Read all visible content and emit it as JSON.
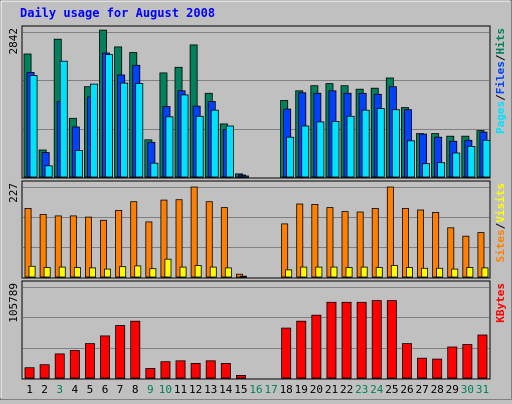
{
  "title": "Daily usage for August 2008",
  "colors": {
    "background": "#c0c0c0",
    "plot_bg": "#c0c0c0",
    "title": "#0000ff",
    "hits": "#00805c",
    "files": "#0040ff",
    "pages": "#00e0ff",
    "sites": "#ff8000",
    "visits": "#ffff00",
    "kbytes": "#ff0000",
    "weekday_label": "#000000",
    "weekend_label": "#00805c"
  },
  "chart_data": [
    {
      "type": "bar",
      "name": "hits-files-pages",
      "ymax_label": "2842",
      "ylim": [
        0,
        2842
      ],
      "legend": [
        {
          "key": "pages",
          "label": "Pages"
        },
        {
          "key": "sep1",
          "label": "/"
        },
        {
          "key": "files",
          "label": "Files"
        },
        {
          "key": "sep2",
          "label": "/"
        },
        {
          "key": "hits",
          "label": "Hits"
        }
      ],
      "categories": [
        1,
        2,
        3,
        4,
        5,
        6,
        7,
        8,
        9,
        10,
        11,
        12,
        13,
        14,
        15,
        16,
        17,
        18,
        19,
        20,
        21,
        22,
        23,
        24,
        25,
        26,
        27,
        28,
        29,
        30,
        31
      ],
      "series": [
        {
          "name": "Hits",
          "key": "hits",
          "values": [
            2410,
            530,
            2700,
            1150,
            1770,
            2880,
            2550,
            2440,
            730,
            2040,
            2150,
            2590,
            1640,
            1040,
            60,
            0,
            0,
            1500,
            1690,
            1790,
            1830,
            1790,
            1720,
            1740,
            1940,
            1360,
            850,
            850,
            800,
            800,
            910
          ]
        },
        {
          "name": "Files",
          "key": "files",
          "values": [
            2050,
            480,
            1480,
            980,
            1570,
            2430,
            2000,
            2190,
            680,
            1380,
            1690,
            1390,
            1480,
            930,
            40,
            0,
            0,
            1330,
            1650,
            1640,
            1690,
            1640,
            1640,
            1620,
            1770,
            1320,
            840,
            780,
            700,
            720,
            880
          ]
        },
        {
          "name": "Pages",
          "key": "pages",
          "values": [
            1990,
            220,
            2270,
            520,
            1820,
            2400,
            1840,
            1830,
            270,
            1180,
            1610,
            1190,
            1310,
            1000,
            20,
            0,
            0,
            780,
            1000,
            1080,
            1090,
            1190,
            1310,
            1340,
            1320,
            710,
            260,
            280,
            470,
            600,
            720
          ]
        }
      ]
    },
    {
      "type": "bar",
      "name": "sites-visits",
      "ymax_label": "227",
      "ylim": [
        0,
        227
      ],
      "legend": [
        {
          "key": "sites",
          "label": "Sites"
        },
        {
          "key": "sep1",
          "label": "/"
        },
        {
          "key": "visits",
          "label": "Visits"
        }
      ],
      "categories": [
        1,
        2,
        3,
        4,
        5,
        6,
        7,
        8,
        9,
        10,
        11,
        12,
        13,
        14,
        15,
        16,
        17,
        18,
        19,
        20,
        21,
        22,
        23,
        24,
        25,
        26,
        27,
        28,
        29,
        30,
        31
      ],
      "series": [
        {
          "name": "Sites",
          "key": "sites",
          "values": [
            173,
            158,
            154,
            154,
            151,
            143,
            168,
            190,
            139,
            194,
            195,
            227,
            190,
            175,
            7,
            0,
            0,
            134,
            184,
            183,
            175,
            165,
            164,
            173,
            227,
            173,
            169,
            163,
            124,
            103,
            112
          ]
        },
        {
          "name": "Visits",
          "key": "visits",
          "values": [
            27,
            24,
            25,
            24,
            23,
            20,
            26,
            28,
            21,
            45,
            25,
            29,
            25,
            23,
            2,
            0,
            0,
            18,
            25,
            25,
            25,
            24,
            25,
            24,
            29,
            24,
            22,
            22,
            20,
            24,
            23
          ]
        }
      ]
    },
    {
      "type": "bar",
      "name": "kbytes",
      "ymax_label": "105789",
      "ylim": [
        0,
        105789
      ],
      "legend": [
        {
          "key": "kbytes",
          "label": "KBytes"
        }
      ],
      "categories": [
        1,
        2,
        3,
        4,
        5,
        6,
        7,
        8,
        9,
        10,
        11,
        12,
        13,
        14,
        15,
        16,
        17,
        18,
        19,
        20,
        21,
        22,
        23,
        24,
        25,
        26,
        27,
        28,
        29,
        30,
        31
      ],
      "series": [
        {
          "name": "KBytes",
          "key": "kbytes",
          "values": [
            12000,
            15500,
            28000,
            32000,
            40000,
            49000,
            61000,
            66000,
            11000,
            19000,
            20000,
            17000,
            20000,
            17000,
            3000,
            0,
            0,
            58000,
            66000,
            73000,
            88000,
            88000,
            88000,
            90000,
            90000,
            40000,
            23000,
            22000,
            36000,
            39000,
            50000
          ]
        }
      ]
    }
  ],
  "x_labels": [
    {
      "day": "1",
      "weekend": false
    },
    {
      "day": "2",
      "weekend": false
    },
    {
      "day": "3",
      "weekend": true
    },
    {
      "day": "4",
      "weekend": false
    },
    {
      "day": "5",
      "weekend": false
    },
    {
      "day": "6",
      "weekend": false
    },
    {
      "day": "7",
      "weekend": false
    },
    {
      "day": "8",
      "weekend": false
    },
    {
      "day": "9",
      "weekend": true
    },
    {
      "day": "10",
      "weekend": true
    },
    {
      "day": "11",
      "weekend": false
    },
    {
      "day": "12",
      "weekend": false
    },
    {
      "day": "13",
      "weekend": false
    },
    {
      "day": "14",
      "weekend": false
    },
    {
      "day": "15",
      "weekend": false
    },
    {
      "day": "16",
      "weekend": true
    },
    {
      "day": "17",
      "weekend": true
    },
    {
      "day": "18",
      "weekend": false
    },
    {
      "day": "19",
      "weekend": false
    },
    {
      "day": "20",
      "weekend": false
    },
    {
      "day": "21",
      "weekend": false
    },
    {
      "day": "22",
      "weekend": false
    },
    {
      "day": "23",
      "weekend": true
    },
    {
      "day": "24",
      "weekend": true
    },
    {
      "day": "25",
      "weekend": false
    },
    {
      "day": "26",
      "weekend": false
    },
    {
      "day": "27",
      "weekend": false
    },
    {
      "day": "28",
      "weekend": false
    },
    {
      "day": "29",
      "weekend": false
    },
    {
      "day": "30",
      "weekend": true
    },
    {
      "day": "31",
      "weekend": true
    }
  ]
}
